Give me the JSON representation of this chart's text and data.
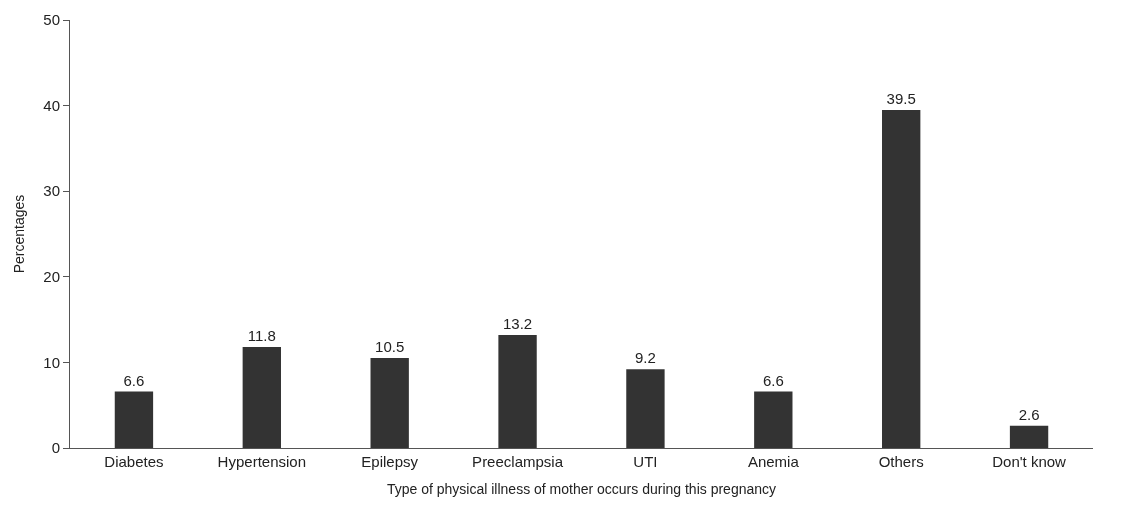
{
  "chart_data": {
    "type": "bar",
    "xlabel": "Type of physical illness of mother occurs during this pregnancy",
    "ylabel": "Percentages",
    "categories": [
      "Diabetes",
      "Hypertension",
      "Epilepsy",
      "Preeclampsia",
      "UTI",
      "Anemia",
      "Others",
      "Don't know"
    ],
    "values": [
      6.6,
      11.8,
      10.5,
      13.2,
      9.2,
      6.6,
      39.5,
      2.6
    ],
    "color": "#333333",
    "ylim": [
      0,
      50
    ],
    "yticks": [
      0,
      10,
      20,
      30,
      40,
      50
    ],
    "data_labels": true
  }
}
